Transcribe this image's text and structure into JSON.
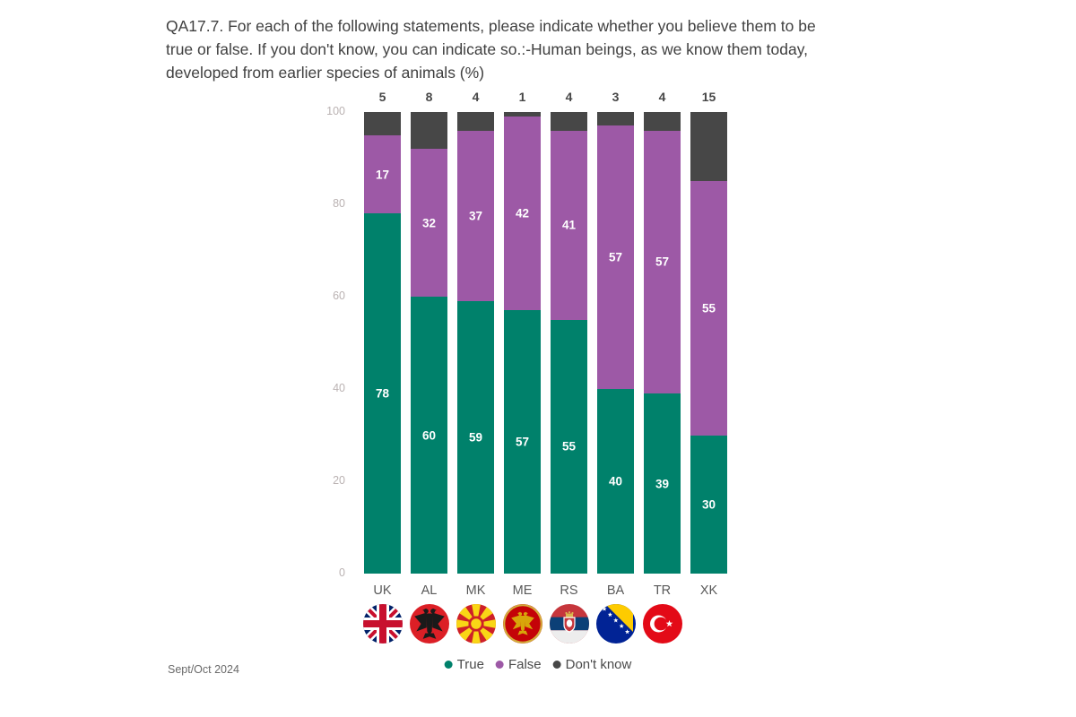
{
  "title": {
    "lines": [
      "QA17.7. For each of the following statements, please indicate whether you believe them to be",
      "true or false. If you don't know, you can indicate so.:-Human beings, as we know them today,",
      "developed from earlier species of animals (%)"
    ]
  },
  "footer": {
    "survey_date": "Sept/Oct 2024"
  },
  "legend": {
    "items": [
      {
        "label": "True",
        "color": "#00816B"
      },
      {
        "label": "False",
        "color": "#9D59A6"
      },
      {
        "label": "Don't know",
        "color": "#474747"
      }
    ]
  },
  "colors": {
    "true_segment": "#00816B",
    "false_segment": "#9D59A6",
    "dont_know_segment": "#474747",
    "axis_tick_text": "#BAB2B2",
    "title_text": "#404040",
    "background": "#FFFFFF"
  },
  "chart_data": {
    "type": "bar",
    "stacked": true,
    "orientation": "vertical",
    "categories": [
      "UK",
      "AL",
      "MK",
      "ME",
      "RS",
      "BA",
      "TR",
      "XK"
    ],
    "series": [
      {
        "name": "True",
        "color": "#00816B",
        "values": [
          78,
          60,
          59,
          57,
          55,
          40,
          39,
          30
        ]
      },
      {
        "name": "False",
        "color": "#9D59A6",
        "values": [
          17,
          32,
          37,
          42,
          41,
          57,
          57,
          55
        ]
      },
      {
        "name": "Don't know",
        "color": "#474747",
        "values": [
          5,
          8,
          4,
          1,
          4,
          3,
          4,
          15
        ]
      }
    ],
    "ylim": [
      0,
      100
    ],
    "yticks": [
      0,
      20,
      40,
      60,
      80,
      100
    ],
    "grid": false,
    "legend_position": "bottom",
    "flags": [
      "UK",
      "AL",
      "MK",
      "ME",
      "RS",
      "BA",
      "TR",
      null
    ]
  }
}
